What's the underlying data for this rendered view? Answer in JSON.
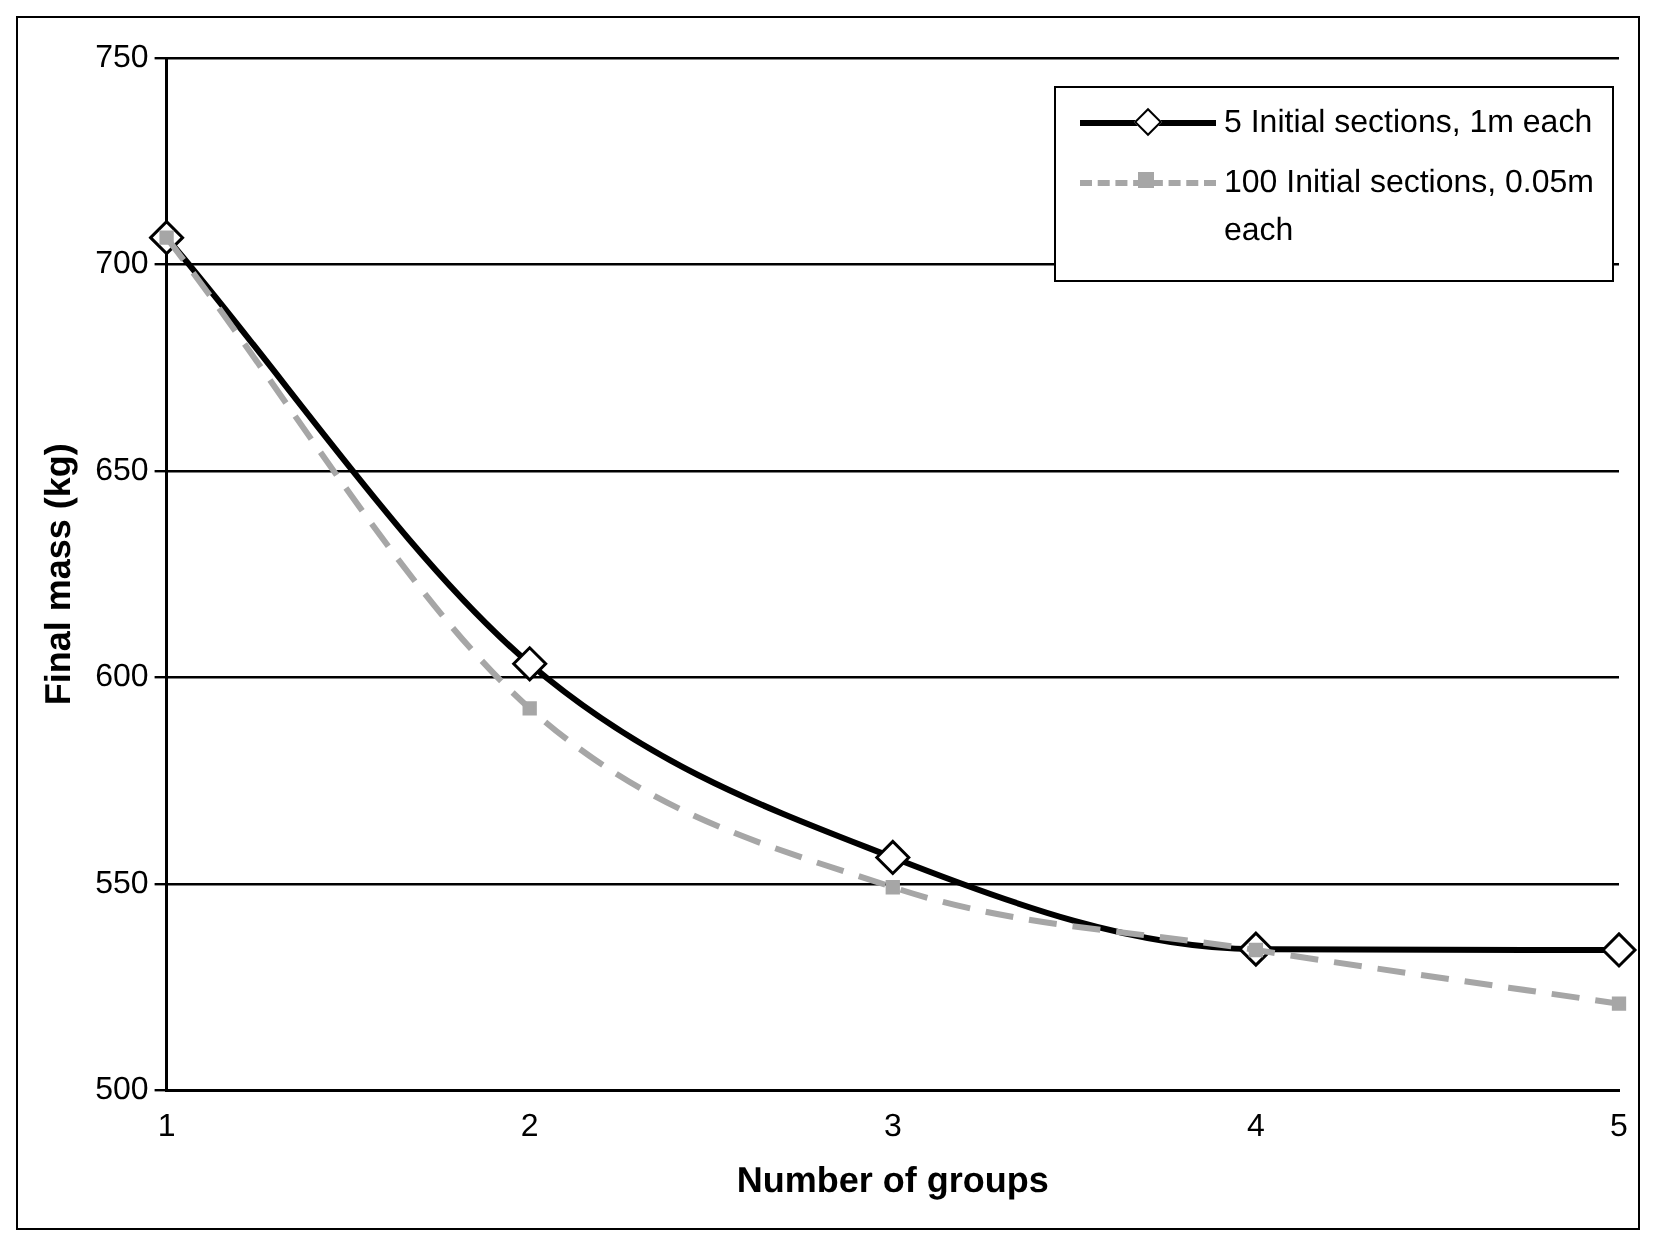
{
  "chart_data": {
    "type": "line",
    "xlabel": "Number of groups",
    "ylabel": "Final mass (kg)",
    "x": [
      1,
      2,
      3,
      4,
      5
    ],
    "xlim": [
      1,
      5
    ],
    "xticks": [
      1,
      2,
      3,
      4,
      5
    ],
    "ylim": [
      500,
      750
    ],
    "yticks": [
      500,
      550,
      600,
      650,
      700,
      750
    ],
    "grid": "y",
    "legend": "top right",
    "series": [
      {
        "name": "5 Initial sections, 1m each",
        "color": "#000000",
        "values": [
          706.5,
          603.3,
          556.4,
          534.2,
          534
        ],
        "marker": "diamond",
        "line_style": "solid"
      },
      {
        "name": "100 Initial sections, 0.05m each",
        "color": "#a6a6a6",
        "values": [
          706.5,
          592.5,
          549.2,
          534,
          521
        ],
        "marker": "square",
        "line_style": "dashed"
      }
    ]
  }
}
